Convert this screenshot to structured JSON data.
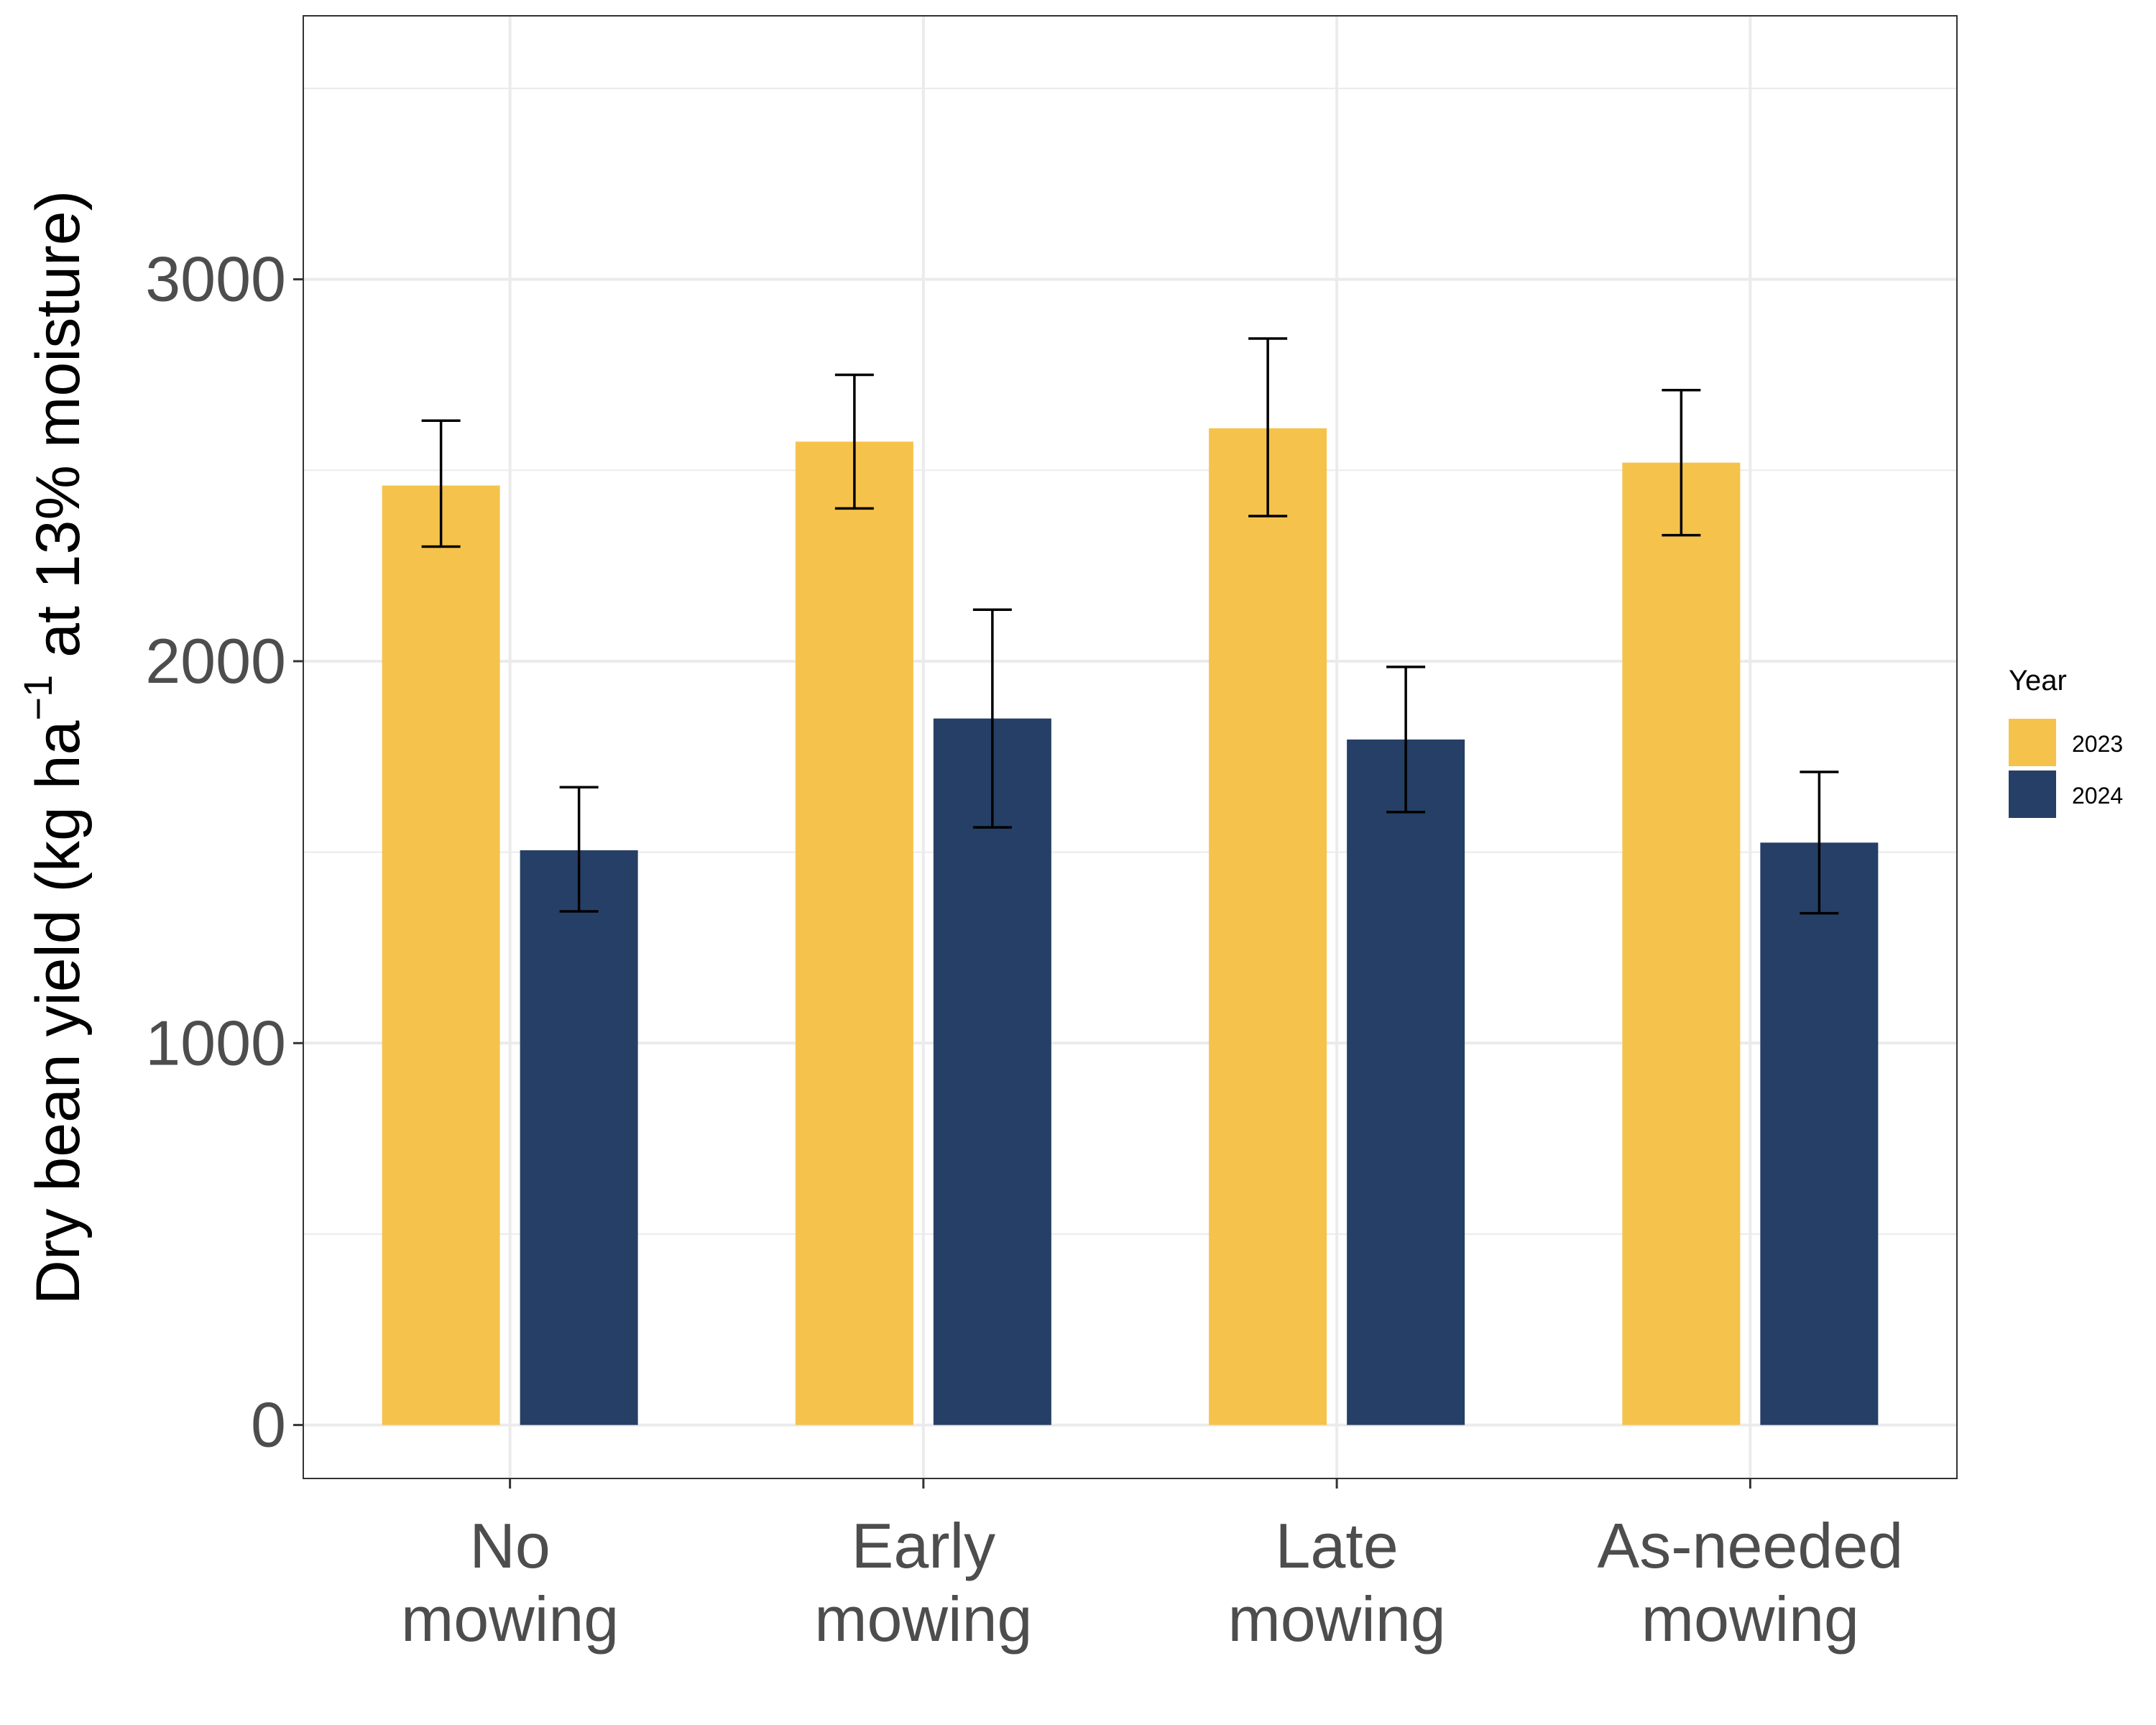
{
  "chart_data": {
    "type": "bar",
    "categories": [
      [
        "No",
        "mowing"
      ],
      [
        "Early",
        "mowing"
      ],
      [
        "Late",
        "mowing"
      ],
      [
        "As-needed",
        "mowing"
      ]
    ],
    "series": [
      {
        "name": "2023",
        "color": "#F5C34B",
        "values": [
          2460,
          2575,
          2610,
          2520
        ],
        "error_low": [
          2300,
          2400,
          2380,
          2330
        ],
        "error_high": [
          2630,
          2750,
          2845,
          2710
        ]
      },
      {
        "name": "2024",
        "color": "#263F66",
        "values": [
          1505,
          1850,
          1795,
          1525
        ],
        "error_low": [
          1345,
          1565,
          1605,
          1340
        ],
        "error_high": [
          1670,
          2135,
          1985,
          1710
        ]
      }
    ],
    "ylabel": {
      "main": "Dry bean yield (kg ha",
      "superscript": "−1",
      "rest": " at 13% moisture)"
    },
    "xlabel": "",
    "ylim": [
      -140,
      3690
    ],
    "yticks": [
      0,
      1000,
      2000,
      3000
    ],
    "ytick_labels": [
      "0",
      "1000",
      "2000",
      "3000"
    ],
    "grid": true,
    "legend": {
      "title": "Year",
      "position": "right",
      "entries": [
        "2023",
        "2024"
      ]
    }
  }
}
